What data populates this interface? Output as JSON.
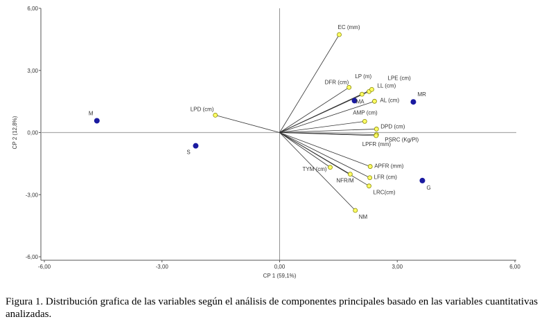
{
  "chart_data": {
    "type": "scatter",
    "subtype": "biplot",
    "xlabel": "CP 1 (59,1%)",
    "ylabel": "CP 2 (12,8%)",
    "xlim": [
      -6,
      6
    ],
    "ylim": [
      -6,
      6
    ],
    "xticks": [
      "-6,00",
      "-3,00",
      "0,00",
      "3,00",
      "6,00"
    ],
    "yticks": [
      "-6,00",
      "-3,00",
      "0,00",
      "3,00",
      "6,00"
    ],
    "grid": false,
    "colors": {
      "variables": "#ffff66",
      "variable_stroke": "#888800",
      "observations": "#1a1aa0",
      "vector": "#333333"
    },
    "variables": [
      {
        "label": "EC (mm)",
        "x": 1.52,
        "y": 4.73
      },
      {
        "label": "DFR (cm)",
        "x": 1.77,
        "y": 2.18
      },
      {
        "label": "LP (m)",
        "x": 2.1,
        "y": 1.85
      },
      {
        "label": "LPE (cm)",
        "x": 2.28,
        "y": 1.98
      },
      {
        "label": "LL (cm)",
        "x": 2.35,
        "y": 2.08
      },
      {
        "label": "AL (cm)",
        "x": 2.42,
        "y": 1.51
      },
      {
        "label": "AMP (cm)",
        "x": 2.17,
        "y": 0.54
      },
      {
        "label": "DPD (cm)",
        "x": 2.47,
        "y": 0.17
      },
      {
        "label": "PSRC (Kg/Pl)",
        "x": 2.47,
        "y": -0.1
      },
      {
        "label": "LPFR (mm)",
        "x": 2.46,
        "y": -0.15
      },
      {
        "label": "APFR (mm)",
        "x": 2.31,
        "y": -1.64
      },
      {
        "label": "LFR (cm)",
        "x": 2.3,
        "y": -2.18
      },
      {
        "label": "LRC(cm)",
        "x": 2.28,
        "y": -2.58
      },
      {
        "label": "NFR/M",
        "x": 1.8,
        "y": -2.01
      },
      {
        "label": "TYM (cm)",
        "x": 1.29,
        "y": -1.68
      },
      {
        "label": "NM",
        "x": 1.93,
        "y": -3.76
      },
      {
        "label": "LPD (cm)",
        "x": -1.64,
        "y": 0.84
      }
    ],
    "observations": [
      {
        "label": "M",
        "x": -4.66,
        "y": 0.57
      },
      {
        "label": "S",
        "x": -2.14,
        "y": -0.64
      },
      {
        "label": "MA",
        "x": 1.91,
        "y": 1.54
      },
      {
        "label": "MR",
        "x": 3.41,
        "y": 1.48
      },
      {
        "label": "G",
        "x": 3.64,
        "y": -2.32
      }
    ]
  },
  "caption": "Figura 1. Distribución grafica de las variables según el análisis de componentes principales basado en las variables cuantitativas analizadas."
}
